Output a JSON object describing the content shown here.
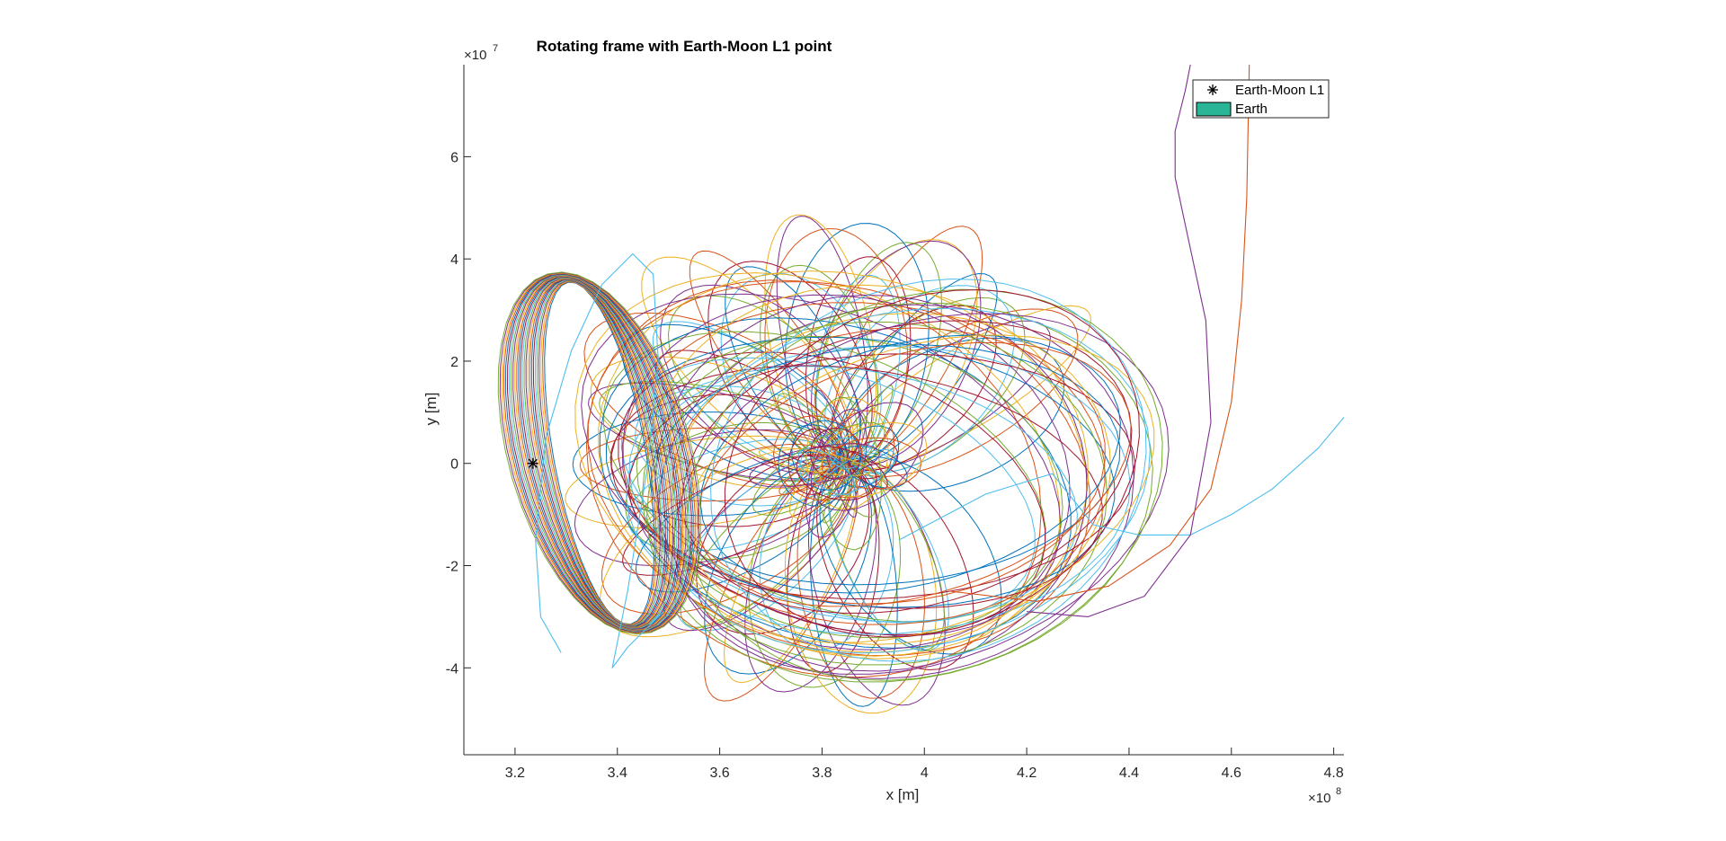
{
  "chart_data": {
    "type": "line",
    "title": "Rotating frame with Earth-Moon L1 point",
    "xlabel": "x [m]",
    "ylabel": "y [m]",
    "x_exponent_base": "×10",
    "x_exponent_power": "8",
    "y_exponent_base": "×10",
    "y_exponent_power": "7",
    "xlim": [
      310000000.0,
      482000000.0
    ],
    "ylim": [
      -57000000.0,
      78000000.0
    ],
    "xticks": [
      320000000.0,
      340000000.0,
      360000000.0,
      380000000.0,
      400000000.0,
      420000000.0,
      440000000.0,
      460000000.0,
      480000000.0
    ],
    "xtick_labels": [
      "3.2",
      "3.4",
      "3.6",
      "3.8",
      "4",
      "4.2",
      "4.4",
      "4.6",
      "4.8"
    ],
    "yticks": [
      -40000000.0,
      -20000000.0,
      0,
      20000000.0,
      40000000.0,
      60000000.0
    ],
    "ytick_labels": [
      "-4",
      "-2",
      "0",
      "2",
      "4",
      "6"
    ],
    "grid": false,
    "legend_position": "top-right",
    "legend": [
      {
        "label": "Earth-Moon L1",
        "marker": "asterisk",
        "color": "#000000"
      },
      {
        "label": "Earth",
        "marker": "filled-rectangle",
        "color": "#2bb597"
      }
    ],
    "l1_point": {
      "x": 323500000.0,
      "y": 0
    },
    "earth_center": {
      "x": 384400000.0,
      "y": 0
    },
    "color_order": [
      "#0072bd",
      "#d95319",
      "#edb120",
      "#7e2f8e",
      "#77ac30",
      "#4dbeee",
      "#a2142f"
    ],
    "series": [
      {
        "color": "#4dbeee",
        "x": [
          329000000.0,
          325000000.0,
          324000000.0,
          326000000.0,
          331000000.0,
          337000000.0,
          343000000.0,
          347000000.0,
          348000000.0,
          346000000.0,
          342000000.0,
          339000000.0,
          342000000.0,
          349000000.0
        ],
        "y": [
          -37000000.0,
          -30000000.0,
          -15000000.0,
          5000000.0,
          22000000.0,
          35000000.0,
          41000000.0,
          37000000.0,
          20000000.0,
          0.0,
          -25000000.0,
          -40000000.0,
          -36000000.0,
          -29000000.0
        ]
      },
      {
        "color": "#4dbeee",
        "x": [
          395000000.0,
          412000000.0,
          425000000.0,
          433000000.0,
          442000000.0,
          452000000.0,
          460000000.0,
          468000000.0,
          477000000.0,
          482000000.0
        ],
        "y": [
          -15000000.0,
          -6000000.0,
          -2000000.0,
          -12000000.0,
          -14000000.0,
          -14000000.0,
          -10000000.0,
          -5000000.0,
          3000000.0,
          9000000.0
        ]
      },
      {
        "color": "#7e2f8e",
        "x": [
          420000000.0,
          432000000.0,
          443000000.0,
          452000000.0,
          456000000.0,
          455000000.0,
          452000000.0,
          449000000.0,
          449000000.0,
          451000000.0,
          452000000.0
        ],
        "y": [
          -29000000.0,
          -30000000.0,
          -26000000.0,
          -14000000.0,
          8000000.0,
          28000000.0,
          42000000.0,
          56000000.0,
          65000000.0,
          73000000.0,
          78000000.0
        ]
      },
      {
        "color": "#d95319",
        "x": [
          405000000.0,
          422000000.0,
          436000000.0,
          448000000.0,
          456000000.0,
          460000000.0,
          462000000.0,
          463000000.0,
          463300000.0,
          463500000.0
        ],
        "y": [
          -25000000.0,
          -27000000.0,
          -24000000.0,
          -16000000.0,
          -5000000.0,
          12000000.0,
          32000000.0,
          52000000.0,
          68000000.0,
          78000000.0
        ]
      }
    ]
  }
}
